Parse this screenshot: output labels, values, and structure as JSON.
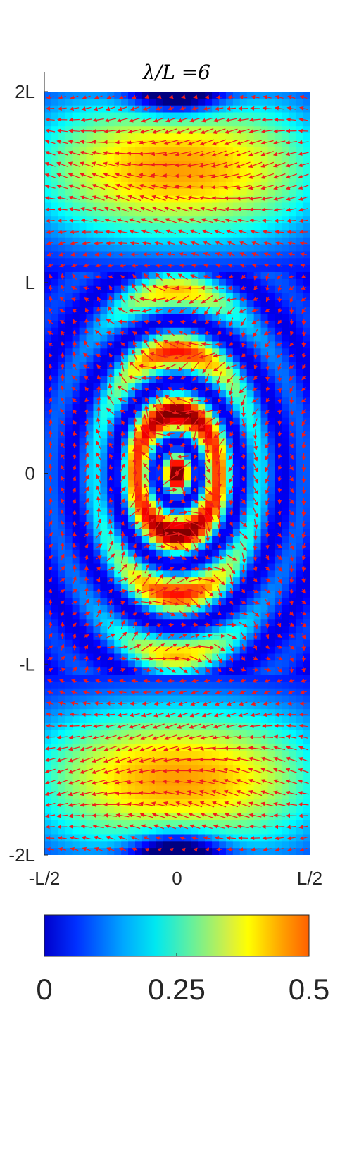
{
  "chart_data": {
    "type": "heatmap",
    "title": "λ/L =6",
    "xlabel": "",
    "ylabel": "",
    "x_ticks": [
      {
        "value": -0.5,
        "label": "-L/2"
      },
      {
        "value": 0,
        "label": "0"
      },
      {
        "value": 0.5,
        "label": "L/2"
      }
    ],
    "y_ticks": [
      {
        "value": 2,
        "label": "2L"
      },
      {
        "value": 1,
        "label": "L"
      },
      {
        "value": 0,
        "label": "0"
      },
      {
        "value": -1,
        "label": "-L"
      },
      {
        "value": -2,
        "label": "-2L"
      }
    ],
    "xlim": [
      -0.5,
      0.5
    ],
    "ylim": [
      -2,
      2
    ],
    "wavelength_ratio": 6,
    "colormap": "jet",
    "colors": {
      "vector_arrows": "#ee1c1c",
      "colormap_low": "#0000cc",
      "colormap_mid": "#00e5e5",
      "colormap_high": "#ff6000"
    },
    "colorbar": {
      "orientation": "horizontal",
      "min": 0,
      "max": 0.5,
      "tick_values": [
        0,
        0.25,
        0.5
      ],
      "tick_labels": [
        "0",
        "0.25",
        "0.5"
      ]
    },
    "grid": false,
    "overlay": "vector field (quiver)"
  }
}
